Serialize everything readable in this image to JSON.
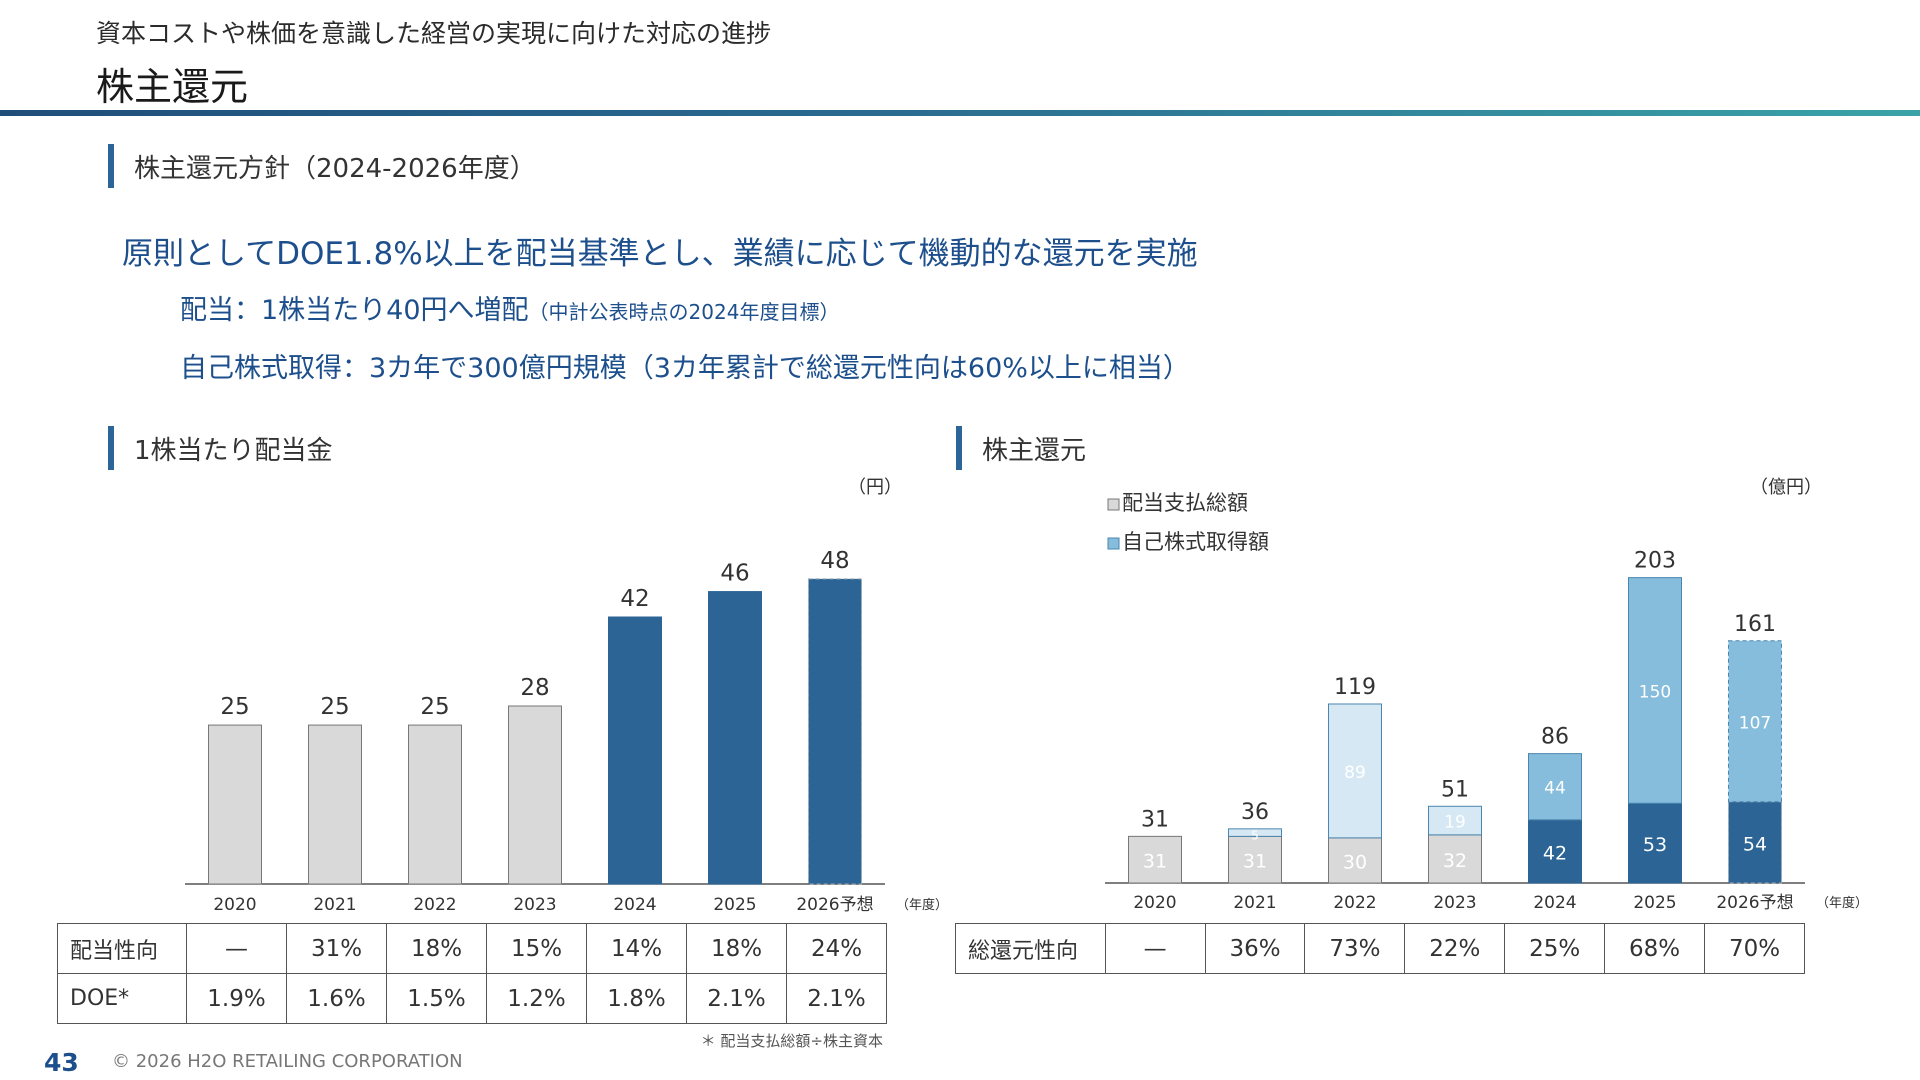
{
  "header": {
    "subtitle": "資本コストや株価を意識した経営の実現に向けた対応の進捗",
    "title": "株主還元"
  },
  "policy": {
    "section_title": "株主還元方針（2024-2026年度）",
    "main": "原則としてDOE1.8%以上を配当基準とし、業績に応じて機動的な還元を実施",
    "dividend": "配当：1株当たり40円へ増配",
    "dividend_note": "（中計公表時点の2024年度目標）",
    "buyback": "自己株式取得：3カ年で300億円規模（3カ年累計で総還元性向は60%以上に相当）"
  },
  "sections": {
    "left_title": "1株当たり配当金",
    "right_title": "株主還元"
  },
  "colors": {
    "gray_bar": "#d9d9d9",
    "dark_blue": "#2c6496",
    "light_blue": "#86bcdc",
    "pale_blue": "#d6e8f3"
  },
  "chart_data": [
    {
      "type": "bar",
      "unit": "（円）",
      "x_unit": "（年度）",
      "categories": [
        "2020",
        "2021",
        "2022",
        "2023",
        "2024",
        "2025",
        "2026予想"
      ],
      "values": [
        25,
        25,
        25,
        28,
        42,
        46,
        48
      ],
      "highlight_from_index": 4,
      "forecast_index": 6,
      "ylim": [
        0,
        56
      ]
    },
    {
      "type": "bar",
      "stacked": true,
      "unit": "（億円）",
      "x_unit": "（年度）",
      "categories": [
        "2020",
        "2021",
        "2022",
        "2023",
        "2024",
        "2025",
        "2026予想"
      ],
      "series": [
        {
          "name": "配当支払総額",
          "values": [
            31,
            31,
            30,
            32,
            42,
            53,
            54
          ]
        },
        {
          "name": "自己株式取得額",
          "values": [
            0,
            5,
            89,
            19,
            44,
            150,
            107
          ]
        }
      ],
      "totals": [
        31,
        36,
        119,
        51,
        86,
        203,
        161
      ],
      "forecast_index": 6,
      "ylim": [
        0,
        230
      ]
    }
  ],
  "left_table": {
    "rows": [
      {
        "label": "配当性向",
        "cells": [
          "—",
          "31%",
          "18%",
          "15%",
          "14%",
          "18%",
          "24%"
        ]
      },
      {
        "label": "DOE*",
        "cells": [
          "1.9%",
          "1.6%",
          "1.5%",
          "1.2%",
          "1.8%",
          "2.1%",
          "2.1%"
        ]
      }
    ],
    "note": "＊ 配当支払総額÷株主資本"
  },
  "right_table": {
    "rows": [
      {
        "label": "総還元性向",
        "cells": [
          "—",
          "36%",
          "73%",
          "22%",
          "25%",
          "68%",
          "70%"
        ]
      }
    ]
  },
  "footer": {
    "page": "43",
    "copyright": "© 2026 H2O RETAILING CORPORATION"
  }
}
